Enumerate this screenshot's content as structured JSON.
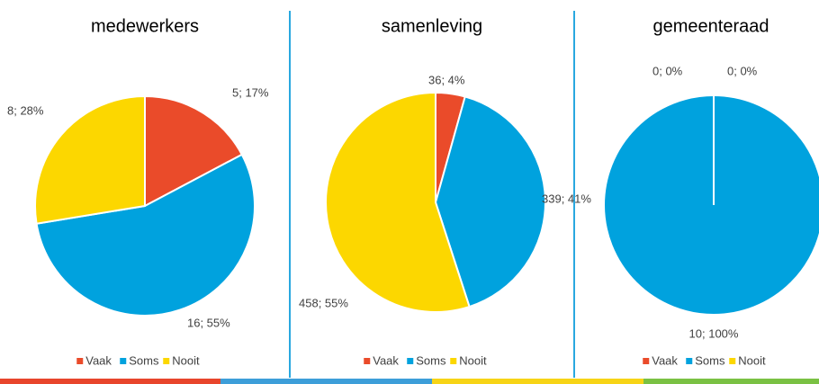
{
  "chart_data": [
    {
      "type": "pie",
      "title": "medewerkers",
      "categories": [
        "Vaak",
        "Soms",
        "Nooit"
      ],
      "values": [
        5,
        16,
        8
      ],
      "value_labels": [
        "5; 17%",
        "16; 55%",
        "8; 28%"
      ],
      "colors": [
        "#ea4b2a",
        "#00a2de",
        "#fcd700"
      ],
      "legend": "bottom"
    },
    {
      "type": "pie",
      "title": "samenleving",
      "categories": [
        "Vaak",
        "Soms",
        "Nooit"
      ],
      "values": [
        36,
        339,
        458
      ],
      "value_labels": [
        "36; 4%",
        "339; 41%",
        "458; 55%"
      ],
      "colors": [
        "#ea4b2a",
        "#00a2de",
        "#fcd700"
      ],
      "legend": "bottom"
    },
    {
      "type": "pie",
      "title": "gemeenteraad",
      "categories": [
        "Vaak",
        "Soms",
        "Nooit"
      ],
      "values": [
        0,
        10,
        0
      ],
      "value_labels": [
        "0; 0%",
        "10; 100%",
        "0; 0%"
      ],
      "colors": [
        "#ea4b2a",
        "#00a2de",
        "#fcd700"
      ],
      "legend": "bottom"
    }
  ]
}
